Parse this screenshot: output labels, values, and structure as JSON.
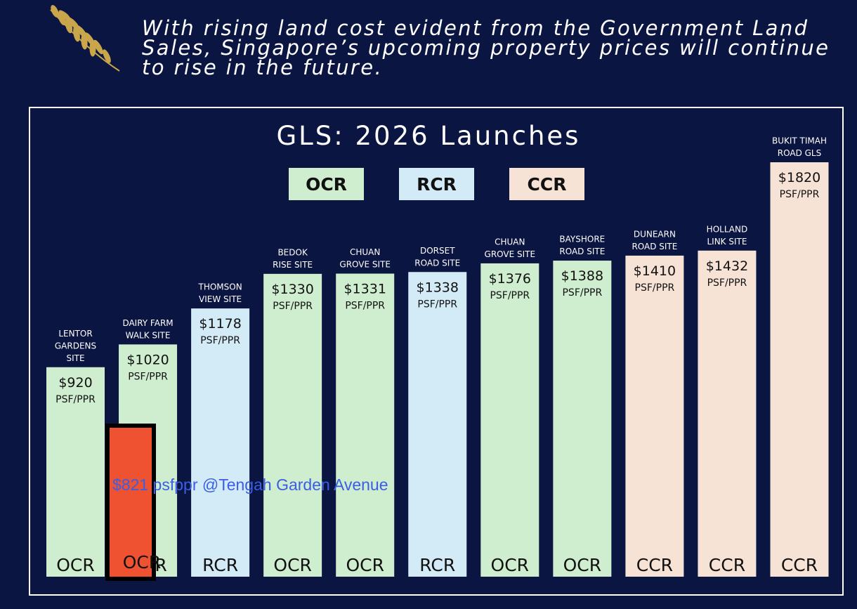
{
  "headline": {
    "line1": "With rising land cost evident from the Government Land",
    "line2": "Sales, Singapore’s upcoming property prices will continue",
    "line3": "to rise in the future."
  },
  "colors": {
    "background": "#0b1541",
    "OCR": "#cfeecf",
    "RCR": "#d3eaf7",
    "CCR": "#f7e2d6",
    "highlight": "#ee5231",
    "annotation": "#3a5ee6",
    "laurel": "#c9a64a"
  },
  "legend": [
    {
      "label": "OCR",
      "color_key": "OCR"
    },
    {
      "label": "RCR",
      "color_key": "RCR"
    },
    {
      "label": "CCR",
      "color_key": "CCR"
    }
  ],
  "annotation": {
    "text": "$821 psfppr @Tengah Garden Avenue"
  },
  "overlay": {
    "category": "OCR",
    "value": 821,
    "site": "Tengah Garden Avenue"
  },
  "chart_data": {
    "type": "bar",
    "title": "GLS: 2026 Launches",
    "unit_label": "PSF/PPR",
    "ylim": [
      0,
      1820
    ],
    "categories": [
      "LENTOR GARDENS SITE",
      "DAIRY FARM WALK SITE",
      "THOMSON VIEW SITE",
      "BEDOK RISE SITE",
      "CHUAN GROVE SITE",
      "DORSET ROAD SITE",
      "CHUAN GROVE SITE",
      "BAYSHORE ROAD SITE",
      "DUNEARN ROAD SITE",
      "HOLLAND LINK SITE",
      "BUKIT TIMAH ROAD GLS"
    ],
    "category_lines": [
      [
        "LENTOR",
        "GARDENS",
        "SITE"
      ],
      [
        "DAIRY FARM",
        "WALK SITE"
      ],
      [
        "THOMSON",
        "VIEW SITE"
      ],
      [
        "BEDOK",
        "RISE SITE"
      ],
      [
        "CHUAN",
        "GROVE SITE"
      ],
      [
        "DORSET",
        "ROAD SITE"
      ],
      [
        "CHUAN",
        "GROVE SITE"
      ],
      [
        "BAYSHORE",
        "ROAD SITE"
      ],
      [
        "DUNEARN",
        "ROAD SITE"
      ],
      [
        "HOLLAND",
        "LINK SITE"
      ],
      [
        "BUKIT TIMAH",
        "ROAD GLS"
      ]
    ],
    "values": [
      920,
      1020,
      1178,
      1330,
      1331,
      1338,
      1376,
      1388,
      1410,
      1432,
      1820
    ],
    "value_labels": [
      "$920",
      "$1020",
      "$1178",
      "$1330",
      "$1331",
      "$1338",
      "$1376",
      "$1388",
      "$1410",
      "$1432",
      "$1820"
    ],
    "regions": [
      "OCR",
      "OCR",
      "RCR",
      "OCR",
      "OCR",
      "RCR",
      "OCR",
      "OCR",
      "CCR",
      "CCR",
      "CCR"
    ]
  }
}
